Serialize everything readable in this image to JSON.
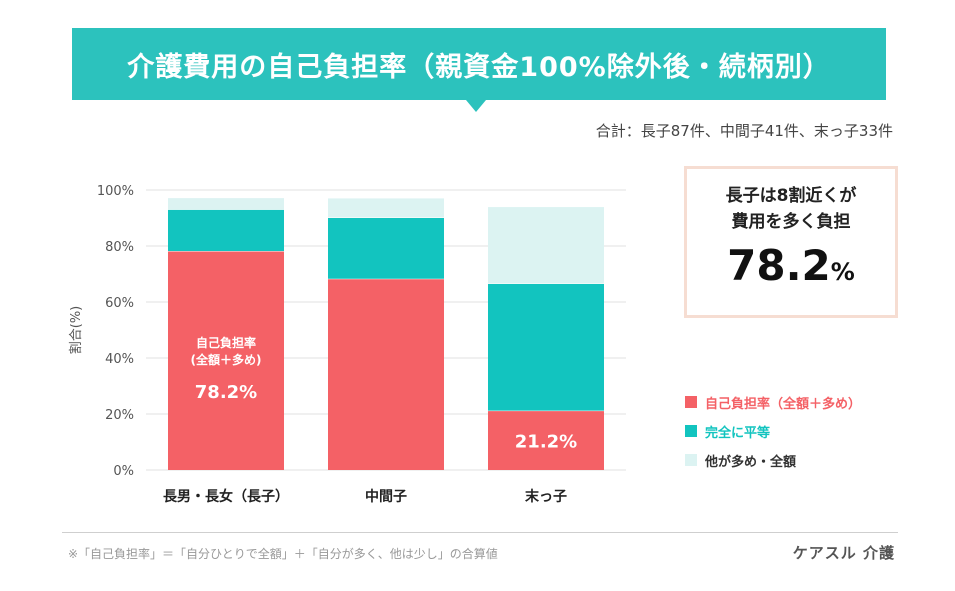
{
  "title": "介護費用の自己負担率（親資金100%除外後・続柄別）",
  "total_note": "合計：長子87件、中間子41件、末っ子33件",
  "callout": {
    "line1": "長子は8割近くが",
    "line2": "費用を多く負担",
    "value": "78.2",
    "unit": "%"
  },
  "footnote": "※「自己負担率」＝「自分ひとりで全額」＋「自分が多く、他は少し」の合算値",
  "brand": "ケアスル 介護",
  "colors": {
    "title_bg": "#2cc2bd",
    "self_burden": "#f46166",
    "equal": "#12c4bf",
    "others_more": "#dcf3f2"
  },
  "chart_data": {
    "type": "bar",
    "stacked": true,
    "categories": [
      "長男・長女（長子）",
      "中間子",
      "末っ子"
    ],
    "series": [
      {
        "name": "自己負担率（全額＋多め）",
        "values": [
          78.2,
          68.3,
          21.2
        ]
      },
      {
        "name": "完全に平等",
        "values": [
          14.9,
          21.9,
          45.4
        ]
      },
      {
        "name": "他が多め・全額",
        "values": [
          4.0,
          6.8,
          27.3
        ]
      }
    ],
    "ylabel": "割合(%)",
    "ylim": [
      0,
      100
    ],
    "yticks": [
      "0%",
      "20%",
      "40%",
      "60%",
      "80%",
      "100%"
    ],
    "data_labels": [
      {
        "category_index": 0,
        "series_index": 0,
        "title": "自己負担率\n(全額＋多め)",
        "text": "78.2%"
      },
      {
        "category_index": 2,
        "series_index": 0,
        "text": "21.2%"
      }
    ],
    "grid": true,
    "legend_position": "right"
  }
}
